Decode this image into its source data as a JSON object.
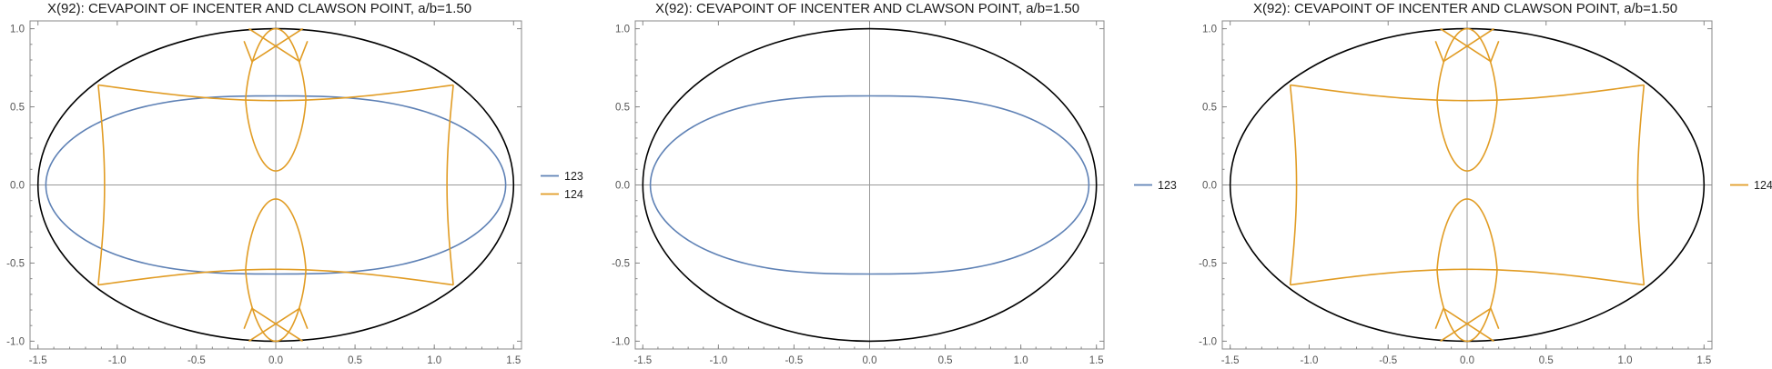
{
  "colors": {
    "ellipse": "#000000",
    "series_123": "#5E81B5",
    "series_124": "#E19C24",
    "frame": "#888888",
    "axis": "#999999"
  },
  "chart_data": [
    {
      "type": "line",
      "title": "X(92): CEVAPOINT OF INCENTER AND CLAWSON POINT, a/b=1.50",
      "xlim": [
        -1.55,
        1.55
      ],
      "ylim": [
        -1.05,
        1.05
      ],
      "x_ticks": [
        "-1.5",
        "-1.0",
        "-0.5",
        "0.0",
        "0.5",
        "1.0",
        "1.5"
      ],
      "y_ticks": [
        "-1.0",
        "-0.5",
        "0.0",
        "0.5",
        "1.0"
      ],
      "legend_position": "right",
      "ellipse": {
        "a": 1.5,
        "b": 1.0
      },
      "series": [
        {
          "name": "123",
          "shape": "oval-lens",
          "x_extent": 1.45,
          "y_extent": 0.57
        },
        {
          "name": "124",
          "shape": "cusped-loops",
          "outer_corners": [
            [
              -1.12,
              0.64
            ],
            [
              1.12,
              0.64
            ],
            [
              -1.12,
              -0.64
            ],
            [
              1.12,
              -0.64
            ]
          ],
          "center_loops_y": [
            [
              0.09,
              1.0
            ],
            [
              -1.0,
              -0.09
            ]
          ]
        }
      ]
    },
    {
      "type": "line",
      "title": "X(92): CEVAPOINT OF INCENTER AND CLAWSON POINT, a/b=1.50",
      "xlim": [
        -1.55,
        1.55
      ],
      "ylim": [
        -1.05,
        1.05
      ],
      "x_ticks": [
        "-1.5",
        "-1.0",
        "-0.5",
        "0.0",
        "0.5",
        "1.0",
        "1.5"
      ],
      "y_ticks": [
        "-1.0",
        "-0.5",
        "0.0",
        "0.5",
        "1.0"
      ],
      "legend_position": "right",
      "ellipse": {
        "a": 1.5,
        "b": 1.0
      },
      "series": [
        {
          "name": "123",
          "shape": "oval-lens",
          "x_extent": 1.45,
          "y_extent": 0.57
        }
      ]
    },
    {
      "type": "line",
      "title": "X(92): CEVAPOINT OF INCENTER AND CLAWSON POINT, a/b=1.50",
      "xlim": [
        -1.55,
        1.55
      ],
      "ylim": [
        -1.05,
        1.05
      ],
      "x_ticks": [
        "-1.5",
        "-1.0",
        "-0.5",
        "0.0",
        "0.5",
        "1.0",
        "1.5"
      ],
      "y_ticks": [
        "-1.0",
        "-0.5",
        "0.0",
        "0.5",
        "1.0"
      ],
      "legend_position": "right",
      "ellipse": {
        "a": 1.5,
        "b": 1.0
      },
      "series": [
        {
          "name": "124",
          "shape": "cusped-loops",
          "outer_corners": [
            [
              -1.12,
              0.64
            ],
            [
              1.12,
              0.64
            ],
            [
              -1.12,
              -0.64
            ],
            [
              1.12,
              -0.64
            ]
          ],
          "center_loops_y": [
            [
              0.09,
              1.0
            ],
            [
              -1.0,
              -0.09
            ]
          ]
        }
      ]
    }
  ]
}
